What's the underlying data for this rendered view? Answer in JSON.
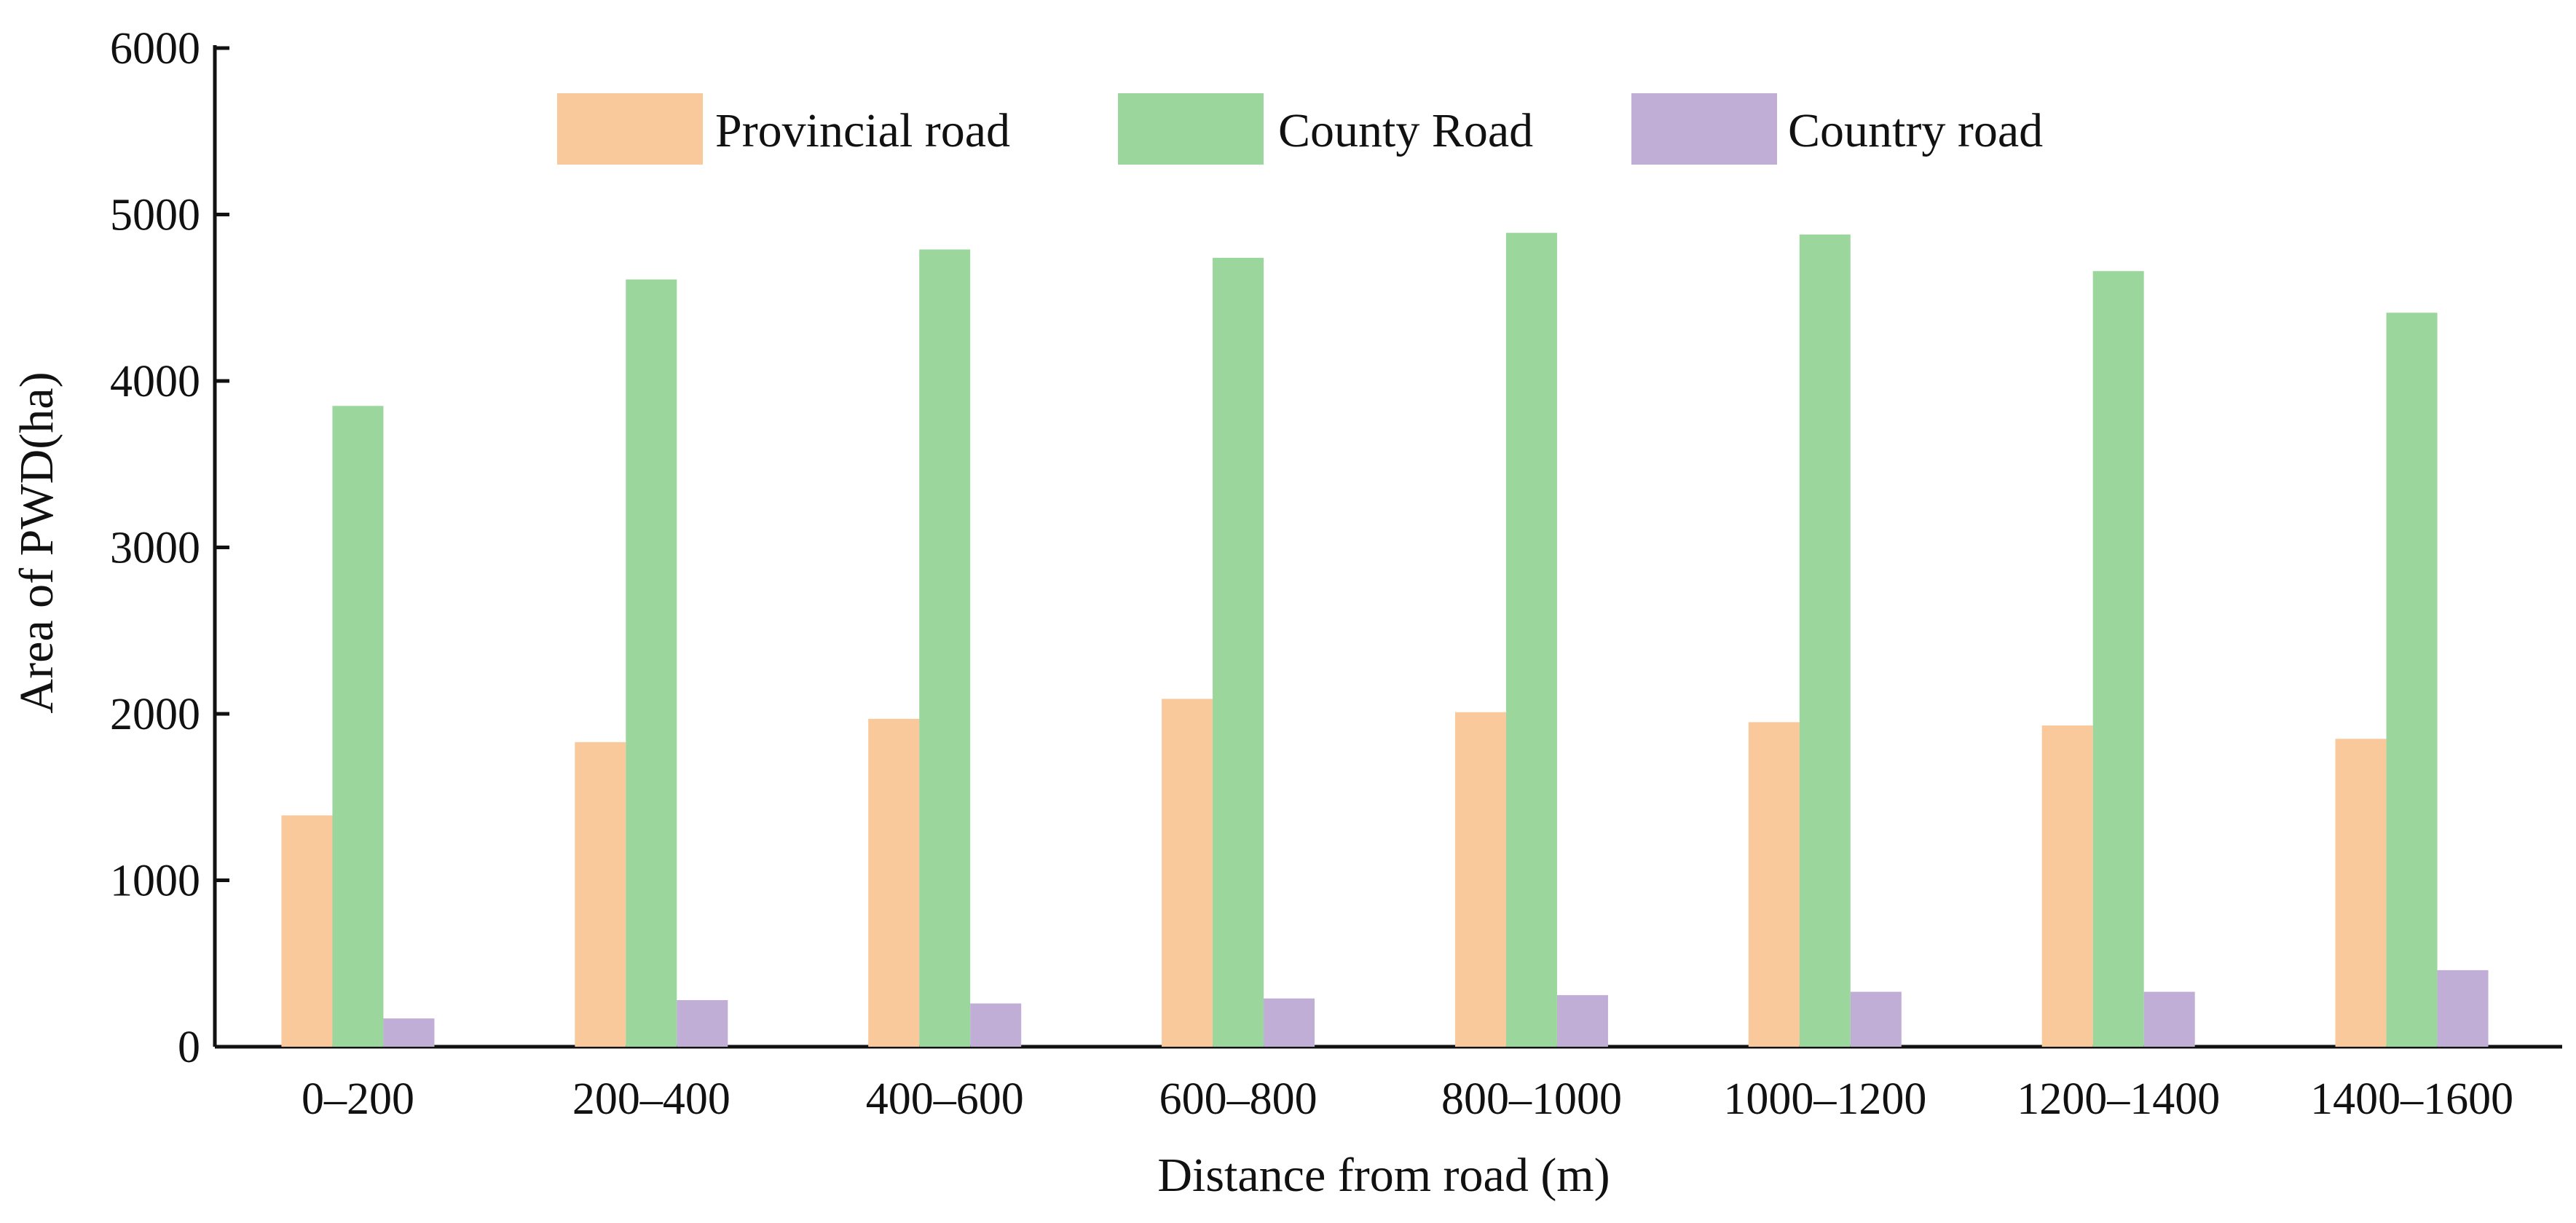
{
  "chart_data": {
    "type": "bar",
    "title": "",
    "xlabel": "Distance from road (m)",
    "ylabel": "Area of PWD(ha)",
    "ylim": [
      0,
      6000
    ],
    "yticks": [
      "0",
      "1000",
      "2000",
      "3000",
      "4000",
      "5000",
      "6000"
    ],
    "categories": [
      "0–200",
      "200–400",
      "400–600",
      "600–800",
      "800–1000",
      "1000–1200",
      "1200–1400",
      "1400–1600"
    ],
    "series": [
      {
        "name": "Provincial road",
        "color": "#F9C89B",
        "values": [
          1390,
          1830,
          1970,
          2090,
          2010,
          1950,
          1930,
          1850
        ]
      },
      {
        "name": "County Road",
        "color": "#9BD69C",
        "values": [
          3850,
          4610,
          4790,
          4740,
          4890,
          4880,
          4660,
          4410
        ]
      },
      {
        "name": "Country road",
        "color": "#C0AED6",
        "values": [
          170,
          280,
          260,
          290,
          310,
          330,
          330,
          460
        ]
      }
    ],
    "legend_position": "top-center",
    "grid": false
  }
}
